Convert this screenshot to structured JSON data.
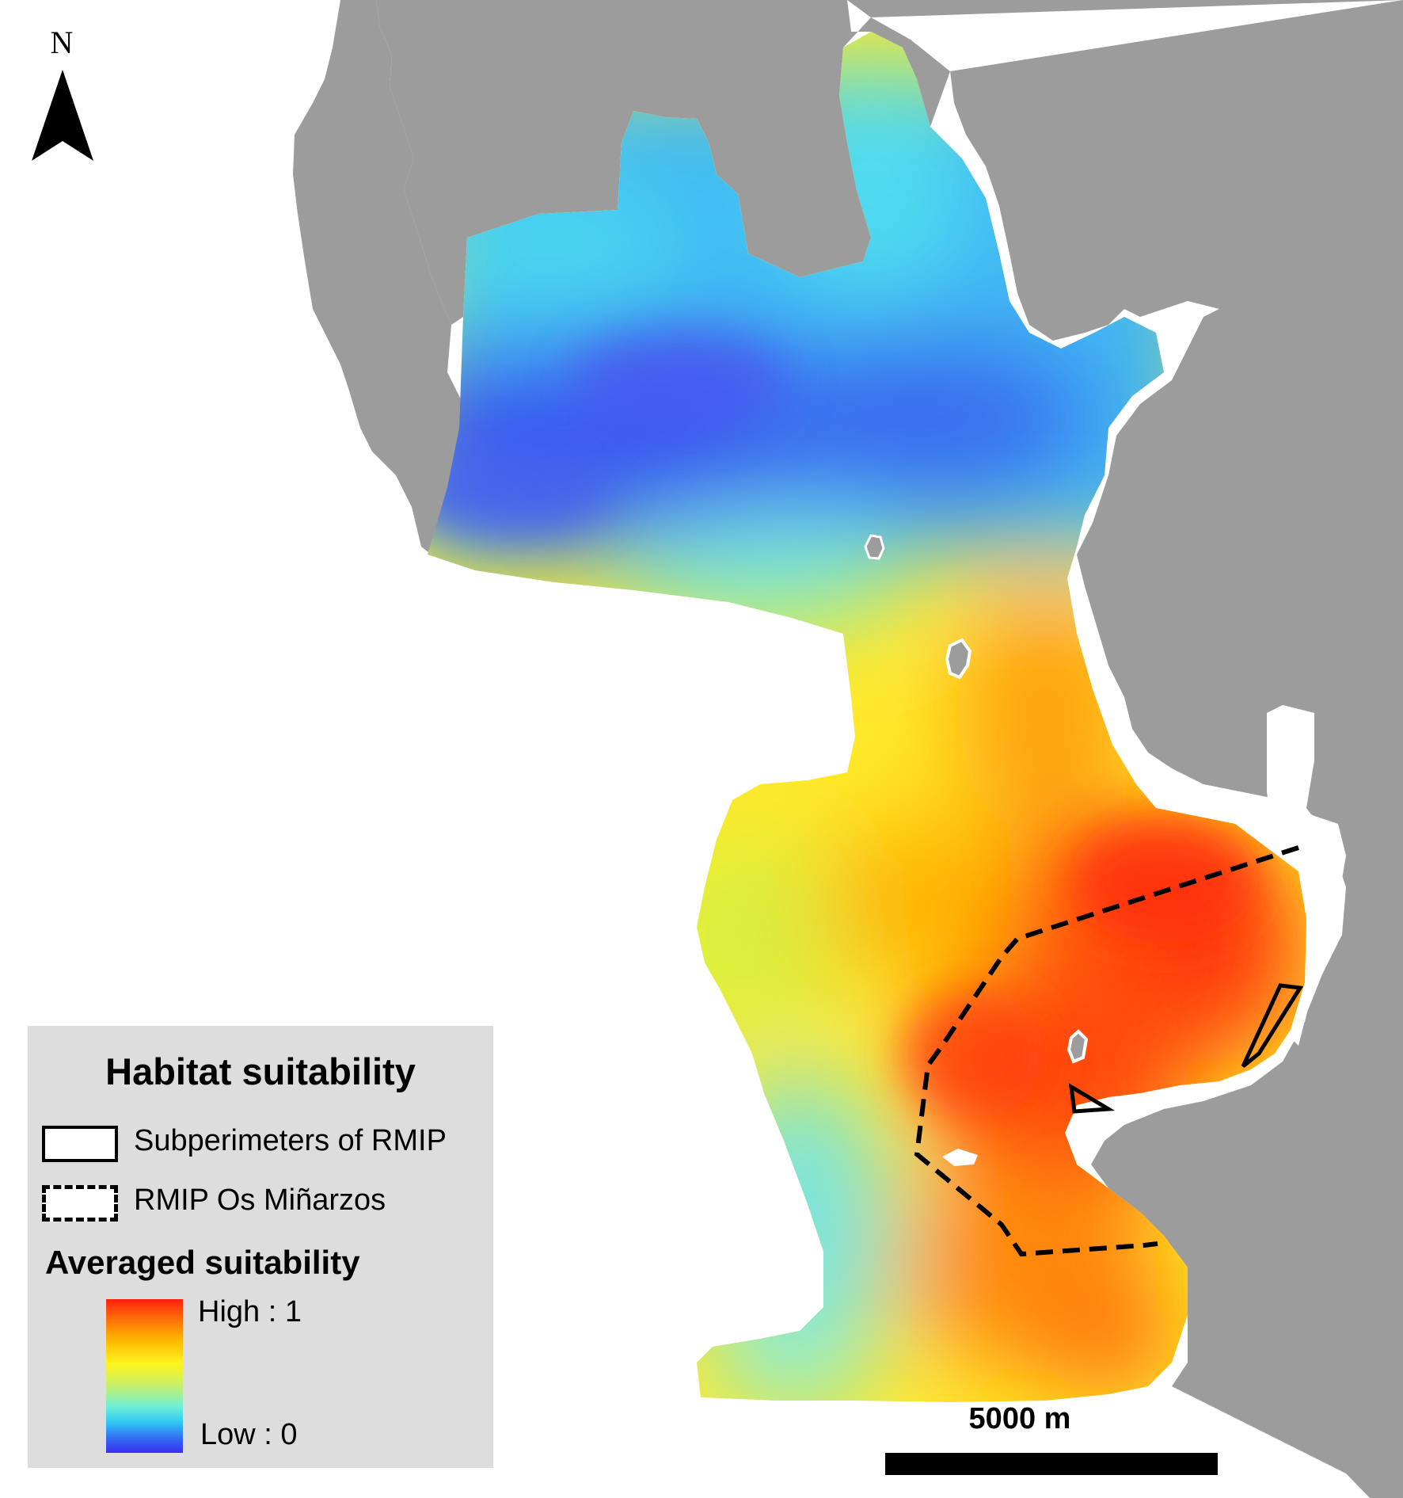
{
  "north_arrow": {
    "letter": "N"
  },
  "scale_bar": {
    "label": "5000 m"
  },
  "legend": {
    "title": "Habitat suitability",
    "items": [
      {
        "label": "Subperimeters of RMIP",
        "symbol": "solid-outline"
      },
      {
        "label": "RMIP Os Miñarzos",
        "symbol": "dashed-outline"
      }
    ],
    "ramp": {
      "title": "Averaged suitability",
      "high_label": "High : 1",
      "low_label": "Low : 0",
      "colors": [
        "#ff1f10",
        "#ff6a08",
        "#ffb400",
        "#fff51e",
        "#c8f068",
        "#6ef0d8",
        "#30c8f4",
        "#3270f4",
        "#3a2cf0"
      ]
    }
  },
  "colors": {
    "land": "#9c9c9c",
    "sea_background": "#ffffff",
    "low_suitability": "#3a5af0",
    "high_suitability": "#ff3a10"
  }
}
